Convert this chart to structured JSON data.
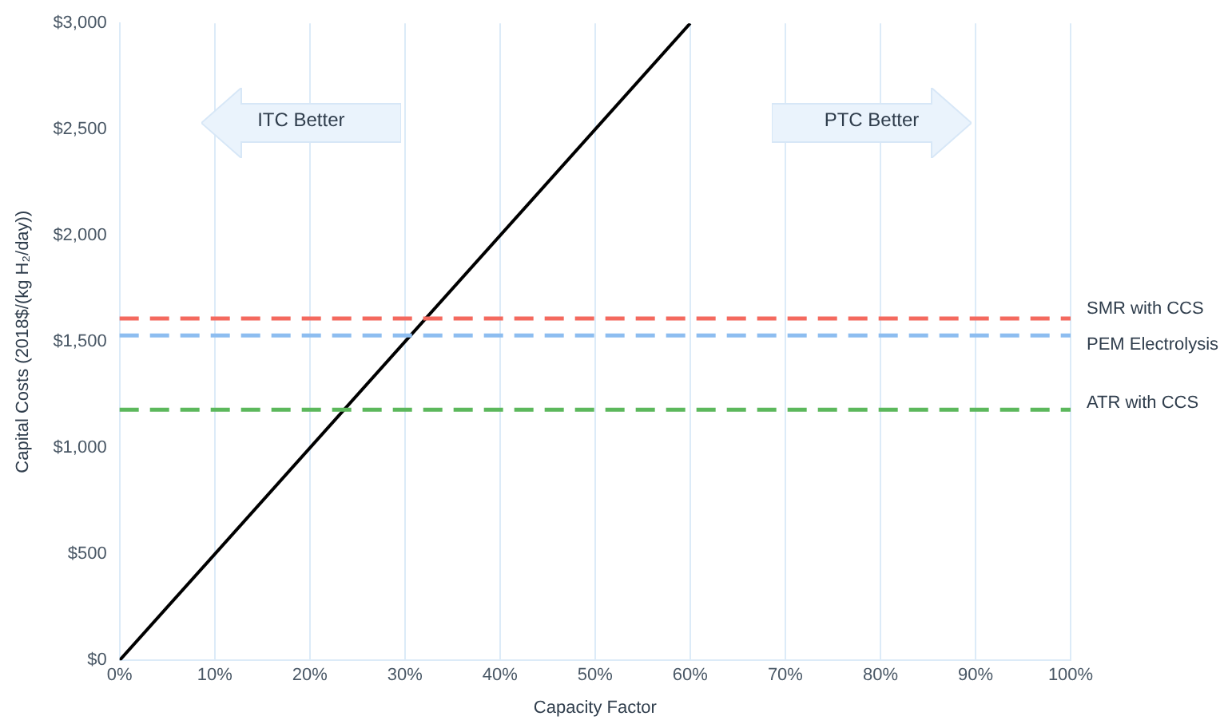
{
  "chart_data": {
    "type": "line",
    "xlabel": "Capacity Factor",
    "ylabel": "Capital Costs (2018$/(kg H₂/day))",
    "x": [
      0,
      60
    ],
    "series": [
      {
        "color": "#000000",
        "values": [
          0,
          3000
        ]
      }
    ],
    "xlim": [
      0,
      100
    ],
    "ylim": [
      0,
      3000
    ],
    "xticks": [
      {
        "value": 0,
        "label": "0%"
      },
      {
        "value": 10,
        "label": "10%"
      },
      {
        "value": 20,
        "label": "20%"
      },
      {
        "value": 30,
        "label": "30%"
      },
      {
        "value": 40,
        "label": "40%"
      },
      {
        "value": 50,
        "label": "50%"
      },
      {
        "value": 60,
        "label": "60%"
      },
      {
        "value": 70,
        "label": "70%"
      },
      {
        "value": 80,
        "label": "80%"
      },
      {
        "value": 90,
        "label": "90%"
      },
      {
        "value": 100,
        "label": "100%"
      }
    ],
    "yticks": [
      {
        "value": 0,
        "label": "$0"
      },
      {
        "value": 500,
        "label": "$500"
      },
      {
        "value": 1000,
        "label": "$1,000"
      },
      {
        "value": 1500,
        "label": "$1,500"
      },
      {
        "value": 2000,
        "label": "$2,000"
      },
      {
        "value": 2500,
        "label": "$2,500"
      },
      {
        "value": 3000,
        "label": "$3,000"
      }
    ],
    "ref_lines": [
      {
        "axis": "y",
        "value": 1610,
        "label": "SMR with CCS",
        "color": "#f4695e",
        "line_style": "dashed"
      },
      {
        "axis": "y",
        "value": 1530,
        "label": "PEM Electrolysis",
        "color": "#8dbdf0",
        "line_style": "dashed"
      },
      {
        "axis": "y",
        "value": 1180,
        "label": "ATR with CCS",
        "color": "#5cb85c",
        "line_style": "dashed"
      }
    ],
    "annotations": [
      "ITC Better",
      "PTC Better"
    ],
    "grid": "x",
    "legend": false,
    "marker": "none",
    "line_style": "solid"
  }
}
